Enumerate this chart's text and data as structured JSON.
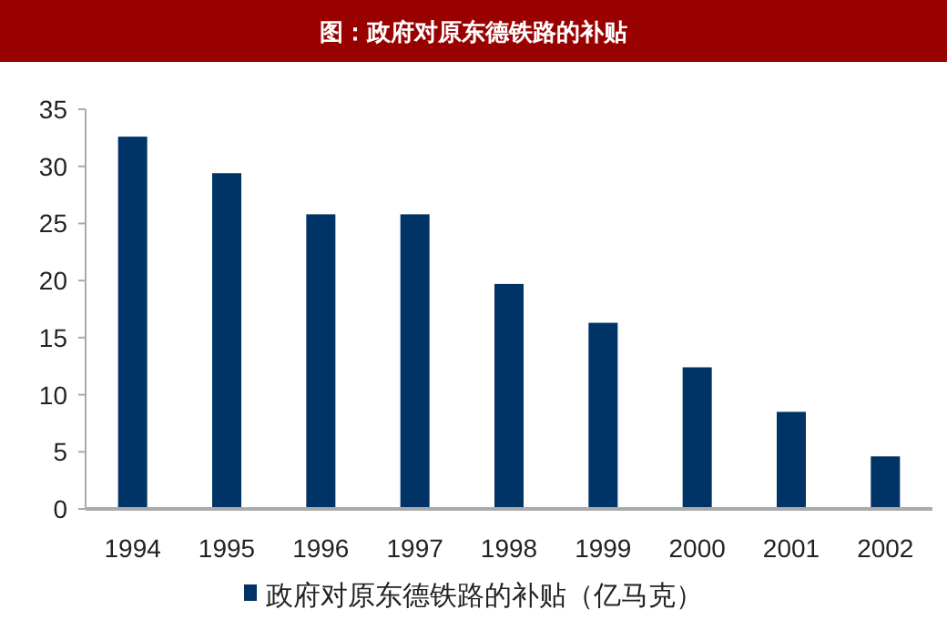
{
  "chart_data": {
    "type": "bar",
    "title": "图：政府对原东德铁路的补贴",
    "categories": [
      "1994",
      "1995",
      "1996",
      "1997",
      "1998",
      "1999",
      "2000",
      "2001",
      "2002"
    ],
    "series": [
      {
        "name": "政府对原东德铁路的补贴（亿马克）",
        "color": "#003366",
        "values": [
          32.6,
          29.4,
          25.8,
          25.8,
          19.7,
          16.3,
          12.4,
          8.5,
          4.6
        ]
      }
    ],
    "ylim": [
      0,
      35
    ],
    "yticks": [
      0,
      5,
      10,
      15,
      20,
      25,
      30,
      35
    ],
    "grid": false,
    "legend": "bottom"
  }
}
